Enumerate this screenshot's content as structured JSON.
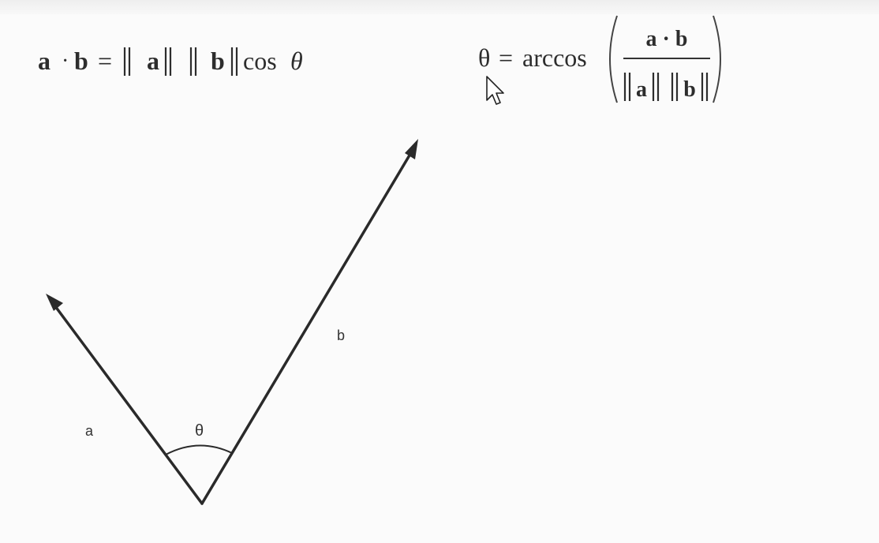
{
  "formula_dot_product": {
    "a": "a",
    "dot": "·",
    "b": "b",
    "equals": "=",
    "norm_a": "a",
    "norm_b": "b",
    "cos": "cos",
    "theta": "θ"
  },
  "formula_angle": {
    "theta": "θ",
    "equals": "=",
    "arccos": "arccos",
    "numerator": "a · b",
    "denominator_a": "a",
    "denominator_b": "b"
  },
  "diagram": {
    "vector_a_label": "a",
    "vector_b_label": "b",
    "angle_label": "θ"
  },
  "colors": {
    "stroke": "#2a2a2a",
    "background": "#fbfbfb"
  },
  "cursor_icon": "arrow-pointer-icon"
}
